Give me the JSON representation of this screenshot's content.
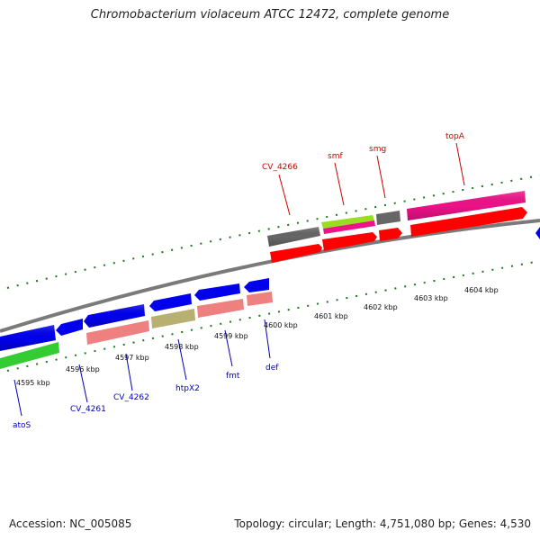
{
  "title": "Chromobacterium violaceum ATCC 12472, complete genome",
  "footer": {
    "accession": "Accession: NC_005085",
    "stats": "Topology: circular; Length: 4,751,080 bp; Genes: 4,530"
  },
  "tick_labels": [
    "4595 kbp",
    "4596 kbp",
    "4597 kbp",
    "4598 kbp",
    "4599 kbp",
    "4600 kbp",
    "4601 kbp",
    "4602 kbp",
    "4603 kbp",
    "4604 kbp"
  ],
  "genes_top": [
    "CV_4266",
    "smf",
    "smg",
    "topA"
  ],
  "genes_bottom": [
    "atoS",
    "CV_4261",
    "CV_4262",
    "htpX2",
    "fmt",
    "def"
  ],
  "colors": {
    "backbone": "#8a8a8a",
    "forward_cds": "#ff0000",
    "reverse_cds": "#0000ee",
    "gene_pink": "#ee88aa",
    "topA_magenta": "#ee1188",
    "tick_green": "#1a7a1a",
    "gene_green": "#33cc33",
    "gene_gray": "#666666",
    "gene_khaki": "#b8b070",
    "gene_lime": "#99dd22",
    "gene_salmon": "#ee8080"
  }
}
